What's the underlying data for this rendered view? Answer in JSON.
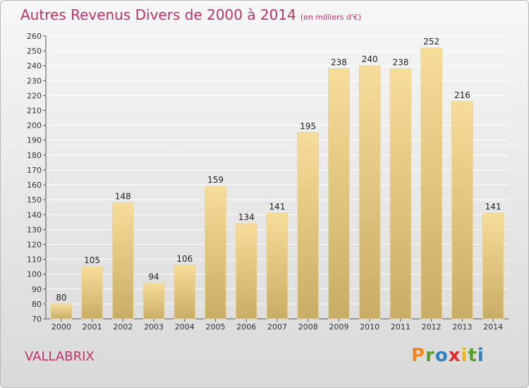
{
  "header": {
    "title": "Autres Revenus Divers de 2000 à 2014",
    "unit": "(en milliers d'€)"
  },
  "footer": {
    "city": "VALLABRIX",
    "brand": {
      "letters": [
        "P",
        "r",
        "o",
        "x",
        "i",
        "t",
        "i"
      ],
      "colors": [
        "#f08a1c",
        "#5a9e2f",
        "#2e7fc4",
        "#e8292e",
        "#f0b419",
        "#5a9e2f",
        "#2e7fc4"
      ]
    }
  },
  "colors": {
    "title": "#c0336a",
    "bar_light": "#f7dd9a",
    "bar_dark": "#c9ad66",
    "grid": "#ffffff",
    "axis": "#555555"
  },
  "chart_data": {
    "type": "bar",
    "title": "Autres Revenus Divers de 2000 à 2014",
    "xlabel": "",
    "ylabel": "",
    "ylim": [
      70,
      260
    ],
    "ytick_step": 10,
    "grid": true,
    "categories": [
      "2000",
      "2001",
      "2002",
      "2003",
      "2004",
      "2005",
      "2006",
      "2007",
      "2008",
      "2009",
      "2010",
      "2011",
      "2012",
      "2013",
      "2014"
    ],
    "values": [
      80,
      105,
      148,
      94,
      106,
      159,
      134,
      141,
      195,
      238,
      240,
      238,
      252,
      216,
      141
    ]
  }
}
